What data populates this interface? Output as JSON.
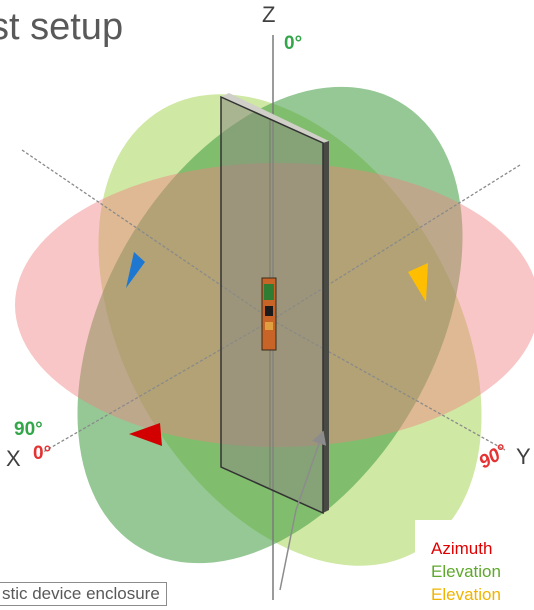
{
  "title": "st setup",
  "axes": {
    "z_label": "Z",
    "x_label": "X",
    "y_label": "Y"
  },
  "angle_labels": {
    "z_top": "0°",
    "x_green": "90°",
    "x_red": "0°",
    "y_red": "90°"
  },
  "callout_text": "stic device enclosure",
  "legend": [
    {
      "label": "Azimuth",
      "color": "#e00000"
    },
    {
      "label": "Elevation",
      "color": "#5ea82c"
    },
    {
      "label": "Elevation",
      "color": "#f0b400"
    }
  ],
  "colors": {
    "azimuth_plane": "#f08080",
    "elevation_plane_light": "#a8d65a",
    "elevation_plane_dark": "#3f9a3f",
    "arrow_blue": "#1e78d2",
    "arrow_orange": "#ffbe00",
    "arrow_red": "#d20000",
    "angle_green": "#33a64a",
    "angle_red": "#e53232"
  },
  "icons": {
    "arrow_x_elevation": "triangle-arrow",
    "arrow_y_elevation": "triangle-arrow",
    "arrow_azimuth": "triangle-arrow"
  }
}
